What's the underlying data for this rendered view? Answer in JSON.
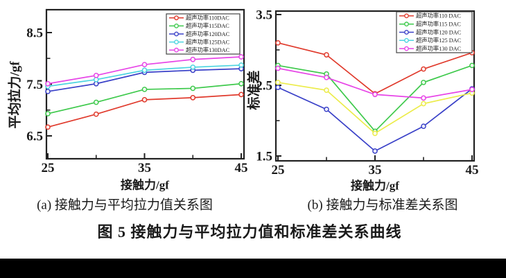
{
  "figure": {
    "caption_a": "(a) 接触力与平均拉力值关系图",
    "caption_b": "(b) 接触力与标准差关系图",
    "main_caption": "图 5  接触力与平均拉力值和标准差关系曲线"
  },
  "chart_data": [
    {
      "id": "average-pull-force",
      "type": "line",
      "xlabel": "接触力/gf",
      "ylabel": "平均拉力/gf",
      "x": [
        25,
        30,
        35,
        40,
        45
      ],
      "xticks": [
        25,
        35,
        45
      ],
      "xticks_minor": [
        30,
        40
      ],
      "yticks": [
        6.5,
        7.5,
        8.5
      ],
      "yticks_minor": [
        7.0,
        8.0
      ],
      "xlim": [
        24.9,
        45.3
      ],
      "ylim": [
        6.06,
        8.94
      ],
      "grid": false,
      "legend_position": "top-right",
      "marker": "open-circle",
      "series": [
        {
          "name": "超声功率110DAC",
          "legend_color": "#e03a2c",
          "line_color": "#e03a2c",
          "values": [
            6.67,
            6.92,
            7.2,
            7.24,
            7.3
          ]
        },
        {
          "name": "超声功率115DAC",
          "legend_color": "#3dc94b",
          "line_color": "#3dc94b",
          "values": [
            6.93,
            7.15,
            7.4,
            7.42,
            7.51
          ]
        },
        {
          "name": "超声功率120DAC",
          "legend_color": "#3a41c8",
          "line_color": "#3a41c8",
          "values": [
            7.36,
            7.51,
            7.73,
            7.77,
            7.8
          ]
        },
        {
          "name": "超声功率125DAC",
          "legend_color": "#4cd5e0",
          "line_color": "#4cd5e0",
          "values": [
            7.46,
            7.59,
            7.77,
            7.83,
            7.87
          ]
        },
        {
          "name": "超声功率130DAC",
          "legend_color": "#e745e7",
          "line_color": "#e745e7",
          "values": [
            7.51,
            7.67,
            7.88,
            7.98,
            8.03
          ]
        }
      ]
    },
    {
      "id": "standard-deviation",
      "type": "line",
      "xlabel": "接触力/gf",
      "ylabel": "标准差",
      "x": [
        25,
        30,
        35,
        40,
        45
      ],
      "xticks": [
        25,
        35,
        45
      ],
      "xticks_minor": [
        30,
        40
      ],
      "yticks": [
        1.5,
        2.5,
        3.5
      ],
      "yticks_minor": [
        2.0,
        3.0
      ],
      "xlim": [
        24.9,
        45.3
      ],
      "ylim": [
        1.43,
        3.55
      ],
      "grid": false,
      "legend_position": "top-right",
      "marker": "open-circle",
      "series": [
        {
          "name": "超声功率110 DAC",
          "legend_color": "#e03a2c",
          "line_color": "#e03a2c",
          "values": [
            3.1,
            2.93,
            2.38,
            2.73,
            2.96
          ]
        },
        {
          "name": "超声功率115 DAC",
          "legend_color": "#3dc94b",
          "line_color": "#3dc94b",
          "values": [
            2.78,
            2.66,
            1.85,
            2.54,
            2.78
          ]
        },
        {
          "name": "超声功率120 DAC",
          "legend_color": "#3a41c8",
          "line_color": "#3a41c8",
          "values": [
            2.47,
            2.16,
            1.57,
            1.92,
            2.45
          ]
        },
        {
          "name": "超声功率125 DAC",
          "legend_color": "#4cd5e0",
          "line_color": "#ecec4a",
          "values": [
            2.54,
            2.43,
            1.82,
            2.24,
            2.39
          ]
        },
        {
          "name": "超声功率130 DAC",
          "legend_color": "#e745e7",
          "line_color": "#e745e7",
          "values": [
            2.74,
            2.61,
            2.37,
            2.32,
            2.44
          ]
        }
      ]
    }
  ]
}
